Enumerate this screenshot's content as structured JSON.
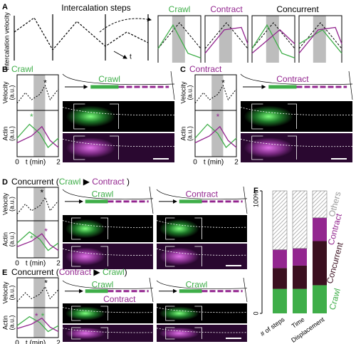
{
  "panel_a": {
    "letter": "A",
    "title": "Intercalation steps",
    "y_label": "Intercalation velocity",
    "x_label": "t",
    "step_labels": [
      "Crawl",
      "Contract",
      "Concurrent"
    ]
  },
  "panel_b": {
    "letter": "B",
    "title": [
      "Crawl"
    ],
    "velocity_label": [
      "Velocity",
      "(a.u.)"
    ],
    "actin_label": [
      "Actin",
      "(a.u.)"
    ],
    "x_ticks": [
      "0",
      "2"
    ],
    "x_label": "t (min)",
    "stars": [
      "*",
      "*"
    ],
    "diagrams": [
      [
        "Crawl"
      ]
    ]
  },
  "panel_c": {
    "letter": "C",
    "title": [
      "Contract"
    ],
    "velocity_label": [
      "Velocity",
      "(a.u.)"
    ],
    "actin_label": [
      "Actin",
      "(a.u.)"
    ],
    "x_ticks": [
      "0",
      "2"
    ],
    "x_label": "t (min)",
    "stars": [
      "*",
      "*"
    ],
    "diagrams": [
      [
        "Contract"
      ]
    ]
  },
  "panel_d": {
    "letter": "D",
    "title": [
      "Concurrent (",
      "Crawl",
      " ▶ ",
      "Contract",
      " )"
    ],
    "velocity_label": [
      "Velocity",
      "(a.u.)"
    ],
    "actin_label": [
      "Actin",
      "(a.u.)"
    ],
    "x_ticks": [
      "0",
      "2"
    ],
    "x_label": "t (min)",
    "stars": [
      "*",
      "*",
      "*"
    ],
    "diagrams": [
      [
        "Crawl"
      ],
      [
        "Contract"
      ]
    ]
  },
  "panel_e": {
    "letter": "E",
    "title": [
      "Concurrent (",
      "Contract",
      " ▶ ",
      "Crawl",
      ")"
    ],
    "velocity_label": [
      "Velocity",
      "(a.u.)"
    ],
    "actin_label": [
      "Actin",
      "(a.u.)"
    ],
    "x_ticks": [
      "0",
      "2"
    ],
    "x_label": "t (min)",
    "stars": [
      "*",
      "*",
      "*"
    ],
    "diagrams": [
      [
        "Crawl",
        "Contract"
      ],
      [
        "Crawl"
      ]
    ]
  },
  "chart_data": {
    "type": "stacked_bar",
    "letter": "F",
    "categories": [
      "# of steps",
      "Time",
      "Displacement"
    ],
    "series": [
      {
        "name": "Crawl",
        "color": "#3fae49",
        "values": [
          20,
          20,
          23
        ]
      },
      {
        "name": "Concurrent",
        "color": "#3b1020",
        "values": [
          17,
          19,
          36
        ]
      },
      {
        "name": "Contract",
        "color": "#93268f",
        "values": [
          15,
          14,
          19
        ]
      },
      {
        "name": "Others",
        "color": "#9a9a9a",
        "values": [
          48,
          47,
          22
        ]
      }
    ],
    "ylim": [
      0,
      100
    ],
    "yticks": [
      0,
      {
        "value": 100,
        "label": "100%"
      }
    ]
  }
}
